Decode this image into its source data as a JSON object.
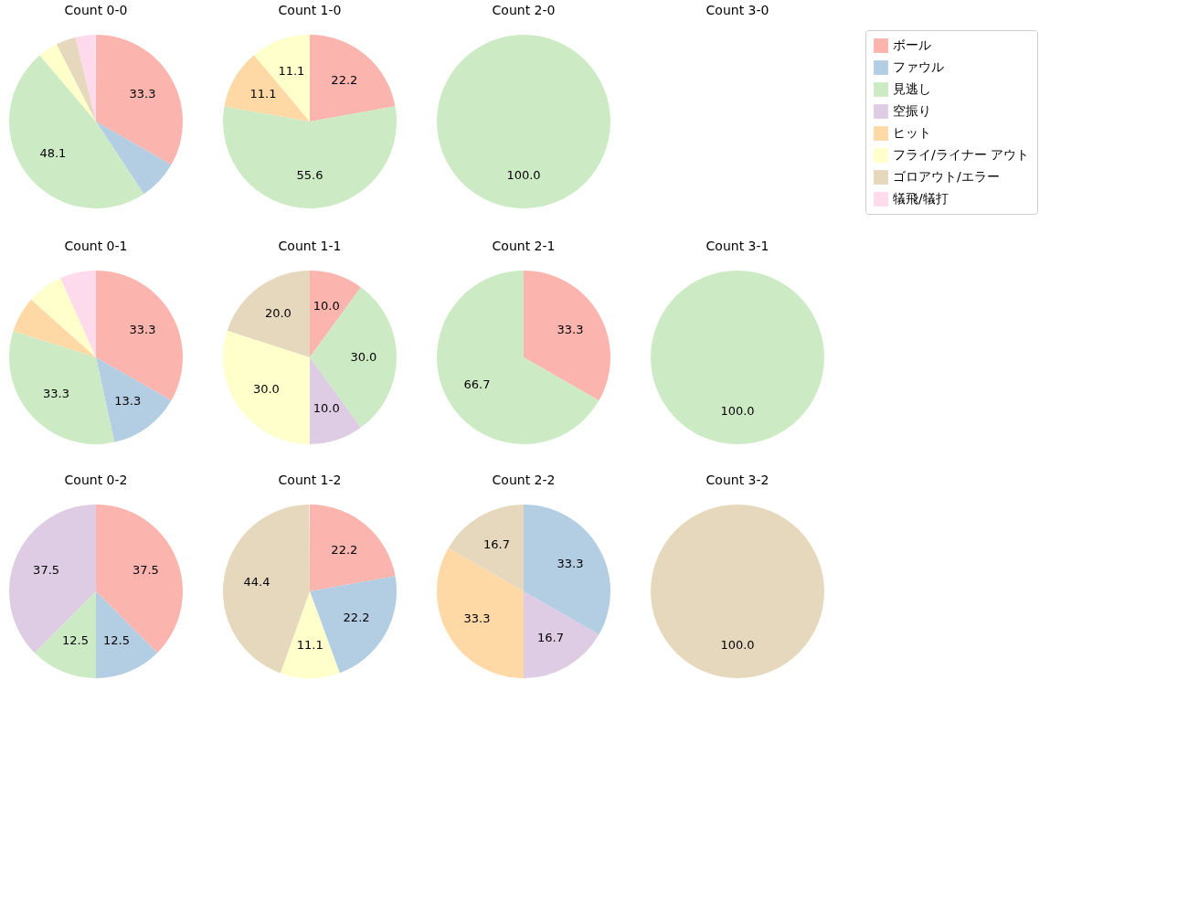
{
  "chart_data": [
    {
      "type": "pie",
      "title": "Count 0-0",
      "legend": "right",
      "categories": [
        "ボール",
        "ファウル",
        "見逃し",
        "空振り",
        "ヒット",
        "フライ/ライナー アウト",
        "ゴロアウト/エラー",
        "犠飛/犠打"
      ],
      "colors": [
        "#fbb4ae",
        "#b3cde3",
        "#ccebc5",
        "#decbe4",
        "#fed9a6",
        "#ffffcc",
        "#e5d8bd",
        "#fddaec"
      ],
      "values": [
        33.3,
        7.4,
        48.1,
        0,
        0,
        3.7,
        3.7,
        3.7
      ],
      "value_labels": [
        "33.3",
        null,
        "48.1",
        null,
        null,
        null,
        null,
        null
      ]
    },
    {
      "type": "pie",
      "title": "Count 1-0",
      "categories": [
        null,
        null,
        null,
        null
      ],
      "colors": [
        "#fbb4ae",
        "#ccebc5",
        "#fed9a6",
        "#ffffcc"
      ],
      "values": [
        22.2,
        55.6,
        11.1,
        11.1
      ],
      "value_labels": [
        "22.2",
        "55.6",
        "11.1",
        "11.1"
      ]
    },
    {
      "type": "pie",
      "title": "Count 2-0",
      "categories": [
        null
      ],
      "colors": [
        "#ccebc5"
      ],
      "values": [
        100.0
      ],
      "value_labels": [
        "100.0"
      ]
    },
    {
      "type": "other",
      "title": "Count 3-0"
    },
    {
      "type": "pie",
      "title": "Count 0-1",
      "categories": [
        null,
        null,
        null,
        null,
        null,
        null
      ],
      "colors": [
        "#fbb4ae",
        "#b3cde3",
        "#ccebc5",
        "#fed9a6",
        "#ffffcc",
        "#fddaec"
      ],
      "values": [
        33.3,
        13.3,
        33.3,
        6.7,
        6.7,
        6.7
      ],
      "value_labels": [
        "33.3",
        "13.3",
        "33.3",
        null,
        null,
        null
      ]
    },
    {
      "type": "pie",
      "title": "Count 1-1",
      "categories": [
        null,
        null,
        null,
        null,
        null
      ],
      "colors": [
        "#fbb4ae",
        "#ccebc5",
        "#decbe4",
        "#ffffcc",
        "#e5d8bd"
      ],
      "values": [
        10.0,
        30.0,
        10.0,
        30.0,
        20.0
      ],
      "value_labels": [
        "10.0",
        "30.0",
        "10.0",
        "30.0",
        "20.0"
      ]
    },
    {
      "type": "pie",
      "title": "Count 2-1",
      "categories": [
        null,
        null
      ],
      "colors": [
        "#fbb4ae",
        "#ccebc5"
      ],
      "values": [
        33.3,
        66.7
      ],
      "value_labels": [
        "33.3",
        "66.7"
      ]
    },
    {
      "type": "pie",
      "title": "Count 3-1",
      "categories": [
        null
      ],
      "colors": [
        "#ccebc5"
      ],
      "values": [
        100.0
      ],
      "value_labels": [
        "100.0"
      ]
    },
    {
      "type": "pie",
      "title": "Count 0-2",
      "categories": [
        null,
        null,
        null,
        null
      ],
      "colors": [
        "#fbb4ae",
        "#b3cde3",
        "#ccebc5",
        "#decbe4"
      ],
      "values": [
        37.5,
        12.5,
        12.5,
        37.5
      ],
      "value_labels": [
        "37.5",
        "12.5",
        "12.5",
        "37.5"
      ]
    },
    {
      "type": "pie",
      "title": "Count 1-2",
      "categories": [
        null,
        null,
        null,
        null
      ],
      "colors": [
        "#fbb4ae",
        "#b3cde3",
        "#ffffcc",
        "#e5d8bd"
      ],
      "values": [
        22.2,
        22.2,
        11.1,
        44.4
      ],
      "value_labels": [
        "22.2",
        "22.2",
        "11.1",
        "44.4"
      ]
    },
    {
      "type": "pie",
      "title": "Count 2-2",
      "categories": [
        null,
        null,
        null,
        null
      ],
      "colors": [
        "#b3cde3",
        "#decbe4",
        "#fed9a6",
        "#e5d8bd"
      ],
      "values": [
        33.3,
        16.7,
        33.3,
        16.7
      ],
      "value_labels": [
        "33.3",
        "16.7",
        "33.3",
        "16.7"
      ]
    },
    {
      "type": "pie",
      "title": "Count 3-2",
      "categories": [
        null
      ],
      "colors": [
        "#e5d8bd"
      ],
      "values": [
        100.0
      ],
      "value_labels": [
        "100.0"
      ]
    }
  ]
}
